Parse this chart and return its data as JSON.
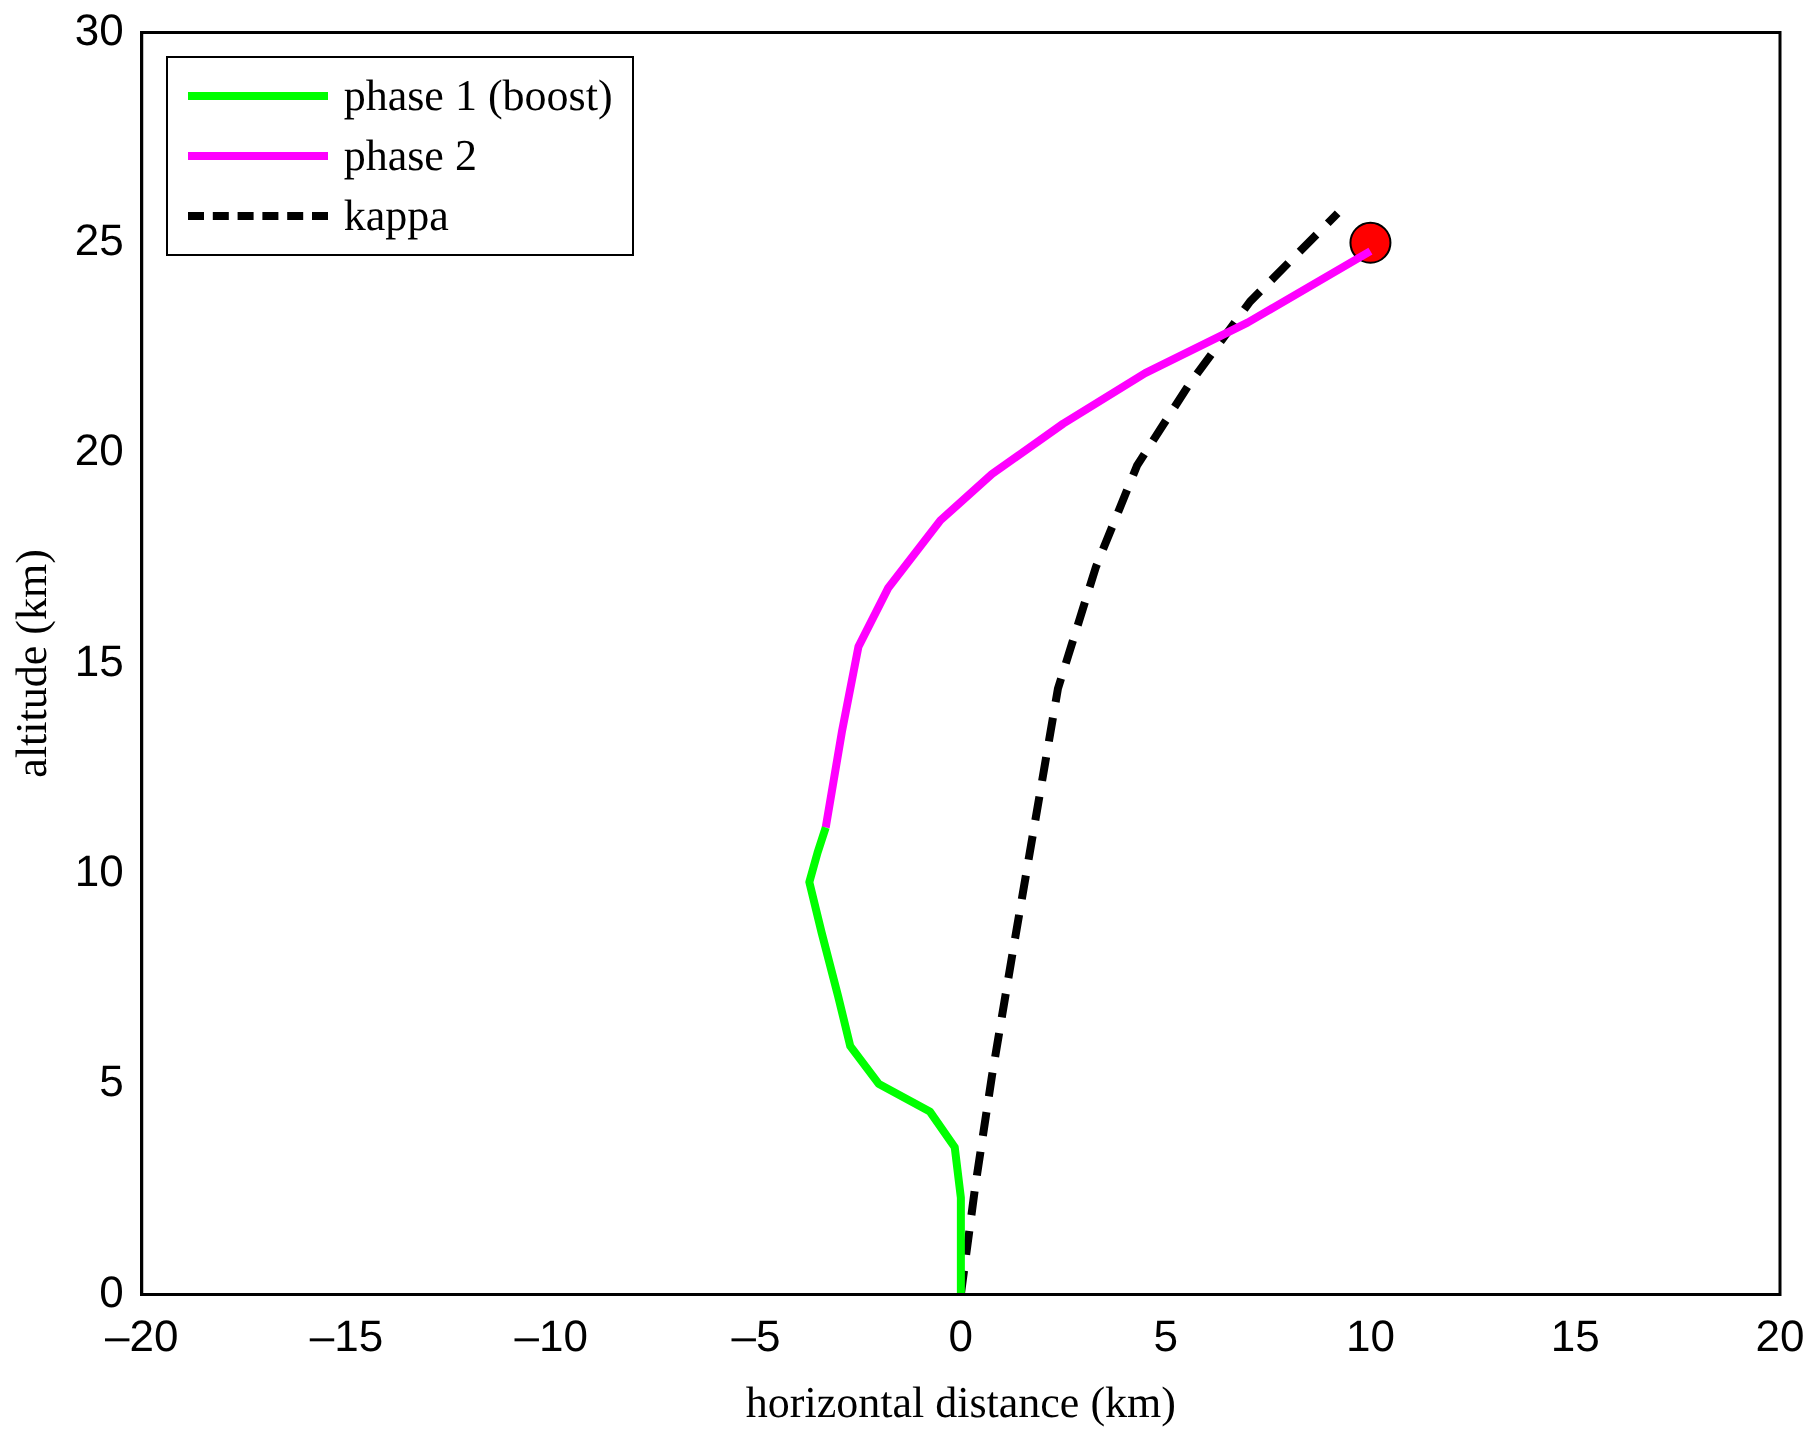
{
  "chart_data": {
    "type": "line",
    "xlabel": "horizontal distance (km)",
    "ylabel": "altitude (km)",
    "xlim": [
      -20,
      20
    ],
    "ylim": [
      0,
      30
    ],
    "xticks": [
      {
        "value": -20,
        "label": "–20"
      },
      {
        "value": -15,
        "label": "–15"
      },
      {
        "value": -10,
        "label": "–10"
      },
      {
        "value": -5,
        "label": "–5"
      },
      0,
      5,
      10,
      15,
      20
    ],
    "yticks": [
      0,
      5,
      10,
      15,
      20,
      25,
      30
    ],
    "grid": false,
    "legend": "top left",
    "marker": "none",
    "series": [
      {
        "name": "phase 1 (boost)",
        "color": "#00ff00",
        "line_style": "solid",
        "x": [
          0,
          0,
          -0.15,
          -0.76,
          -2.0,
          -2.7,
          -3.0,
          -3.4,
          -3.7,
          -3.5,
          -3.3
        ],
        "values": [
          0,
          2.3,
          3.5,
          4.35,
          5,
          5.9,
          7.1,
          8.6,
          9.8,
          10.5,
          11.1
        ]
      },
      {
        "name": "phase 2",
        "color": "#ff00ff",
        "line_style": "solid",
        "x": [
          -3.3,
          -2.9,
          -2.5,
          -1.77,
          -0.5,
          0.76,
          2.5,
          4.5,
          7.0,
          10.0
        ],
        "values": [
          11.1,
          13.4,
          15.4,
          16.8,
          18.4,
          19.5,
          20.7,
          21.9,
          23.1,
          24.8
        ]
      },
      {
        "name": "kappa",
        "color": "#000000",
        "line_style": "dashed",
        "x": [
          0,
          0.35,
          0.76,
          1.26,
          1.77,
          2.37,
          3.3,
          4.3,
          5.55,
          7.06,
          9.2
        ],
        "values": [
          0,
          2.56,
          5.2,
          8.1,
          11.0,
          14.4,
          17.3,
          19.7,
          21.6,
          23.6,
          25.7
        ]
      },
      {
        "type": "scatter",
        "color": "#ff0000",
        "marker": "circle",
        "x": [
          10
        ],
        "values": [
          25
        ]
      }
    ]
  }
}
